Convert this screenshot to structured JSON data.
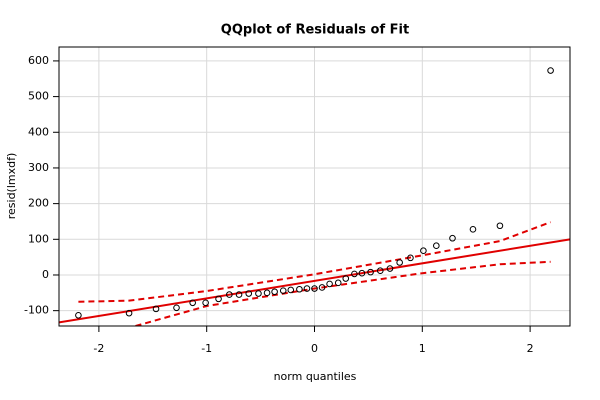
{
  "chart_data": {
    "type": "scatter",
    "title": "QQplot of Residuals of Fit",
    "x_label": "norm quantiles",
    "y_label": "resid(lmxdf)",
    "xlim": [
      -2.37,
      2.37
    ],
    "ylim": [
      -143,
      639
    ],
    "xticks": [
      -2,
      -1,
      0,
      1,
      2
    ],
    "yticks": [
      -100,
      0,
      100,
      200,
      300,
      400,
      500,
      600
    ],
    "grid": true,
    "point_color": "#000000",
    "x": [
      -2.19,
      -1.72,
      -1.47,
      -1.28,
      -1.13,
      -1.01,
      -0.89,
      -0.79,
      -0.7,
      -0.61,
      -0.52,
      -0.44,
      -0.37,
      -0.29,
      -0.22,
      -0.14,
      -0.07,
      0,
      0.07,
      0.14,
      0.22,
      0.29,
      0.37,
      0.44,
      0.52,
      0.61,
      0.7,
      0.79,
      0.89,
      1.01,
      1.13,
      1.28,
      1.47,
      1.72,
      2.19
    ],
    "values": [
      -113,
      -107,
      -95,
      -92,
      -78,
      -78,
      -67,
      -55,
      -55,
      -52,
      -52,
      -50,
      -47,
      -44,
      -42,
      -40,
      -38,
      -38,
      -35,
      -25,
      -22,
      -10,
      3,
      5,
      8,
      12,
      18,
      35,
      48,
      68,
      82,
      103,
      128,
      138,
      573
    ],
    "lines": [
      {
        "color": "#e00000",
        "dashed": false,
        "x": [
          -2.37,
          2.37
        ],
        "y": [
          -133,
          100
        ]
      },
      {
        "color": "#e00000",
        "dashed": true,
        "x": [
          -2.19,
          -1.72,
          -1.0,
          0,
          1.0,
          1.72,
          2.19
        ],
        "y": [
          -75,
          -72,
          -45,
          2,
          55,
          95,
          148
        ]
      },
      {
        "color": "#e00000",
        "dashed": true,
        "x": [
          -1.66,
          -1.0,
          0,
          1.0,
          1.72,
          2.19
        ],
        "y": [
          -143,
          -87,
          -38,
          5,
          30,
          37
        ]
      }
    ]
  }
}
